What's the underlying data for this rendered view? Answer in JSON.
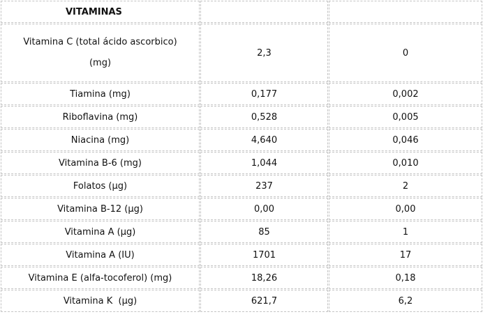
{
  "table": {
    "title": "VITAMINAS",
    "rows": [
      [
        "Vitamina C (total ácido ascorbico) (mg)",
        "2,3",
        "0"
      ],
      [
        "Tiamina (mg)",
        "0,177",
        "0,002"
      ],
      [
        "Riboflavina (mg)",
        "0,528",
        "0,005"
      ],
      [
        "Niacina (mg)",
        "4,640",
        "0,046"
      ],
      [
        "Vitamina B-6 (mg)",
        "1,044",
        "0,010"
      ],
      [
        "Folatos (µg)",
        "237",
        "2"
      ],
      [
        "Vitamina B-12 (µg)",
        "0,00",
        "0,00"
      ],
      [
        "Vitamina A (µg)",
        "85",
        "1"
      ],
      [
        "Vitamina A (IU)",
        "1701",
        "17"
      ],
      [
        "Vitamina E (alfa-tocoferol) (mg)",
        "18,26",
        "0,18"
      ],
      [
        "Vitamina K  (µg)",
        "621,7",
        "6,2"
      ]
    ]
  }
}
